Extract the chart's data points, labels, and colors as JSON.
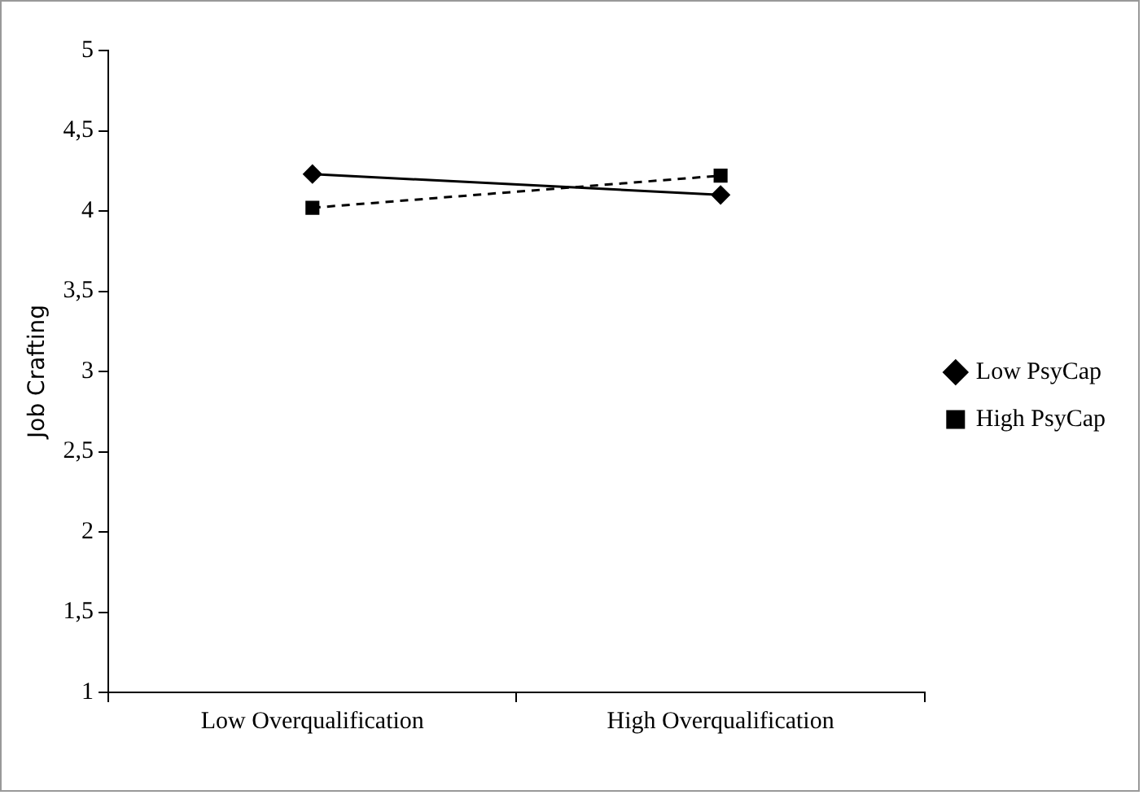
{
  "chart_data": {
    "type": "line",
    "ylabel": "Job Crafting",
    "categories": [
      "Low Overqualification",
      "High Overqualification"
    ],
    "series": [
      {
        "name": "Low PsyCap",
        "color": "#000000",
        "values": [
          4.23,
          4.1
        ],
        "marker": "diamond",
        "line_style": "solid"
      },
      {
        "name": "High PsyCap",
        "color": "#000000",
        "values": [
          4.02,
          4.22
        ],
        "marker": "square",
        "line_style": "dashed"
      }
    ],
    "ylim": [
      1,
      5
    ],
    "yticks": [
      1,
      {
        "value": 1.5,
        "label": "1,5"
      },
      2,
      {
        "value": 2.5,
        "label": "2,5"
      },
      3,
      {
        "value": 3.5,
        "label": "3,5"
      },
      4,
      {
        "value": 4.5,
        "label": "4,5"
      },
      5
    ],
    "grid": false,
    "legend": "right"
  }
}
